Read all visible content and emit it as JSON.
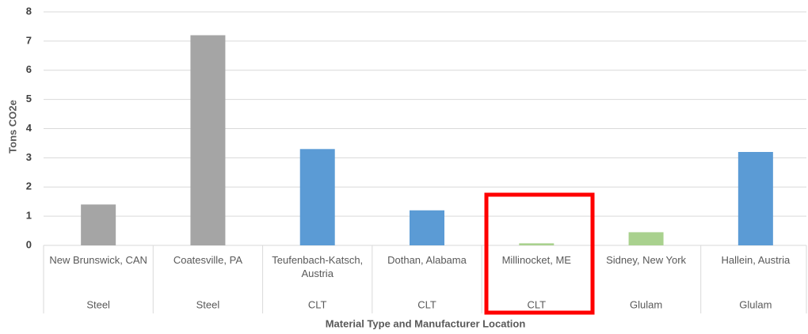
{
  "chart_data": {
    "type": "bar",
    "categories": [
      "New Brunswick, CAN",
      "Coatesville, PA",
      "Teufenbach-Katsch, Austria",
      "Dothan, Alabama",
      "Millinocket, ME",
      "Sidney, New York",
      "Hallein, Austria"
    ],
    "groups": [
      "Steel",
      "Steel",
      "CLT",
      "CLT",
      "CLT",
      "Glulam",
      "Glulam"
    ],
    "values": [
      1.4,
      7.2,
      3.3,
      1.2,
      0.07,
      0.45,
      3.2
    ],
    "colors": [
      "#a5a5a5",
      "#a5a5a5",
      "#5b9bd5",
      "#5b9bd5",
      "#a9d18e",
      "#a9d18e",
      "#5b9bd5"
    ],
    "ylabel": "Tons CO2e",
    "xlabel": "Material Type and Manufacturer Location",
    "ylim": [
      0,
      8
    ],
    "yticks": [
      0,
      1,
      2,
      3,
      4,
      5,
      6,
      7,
      8
    ],
    "grid": true
  }
}
